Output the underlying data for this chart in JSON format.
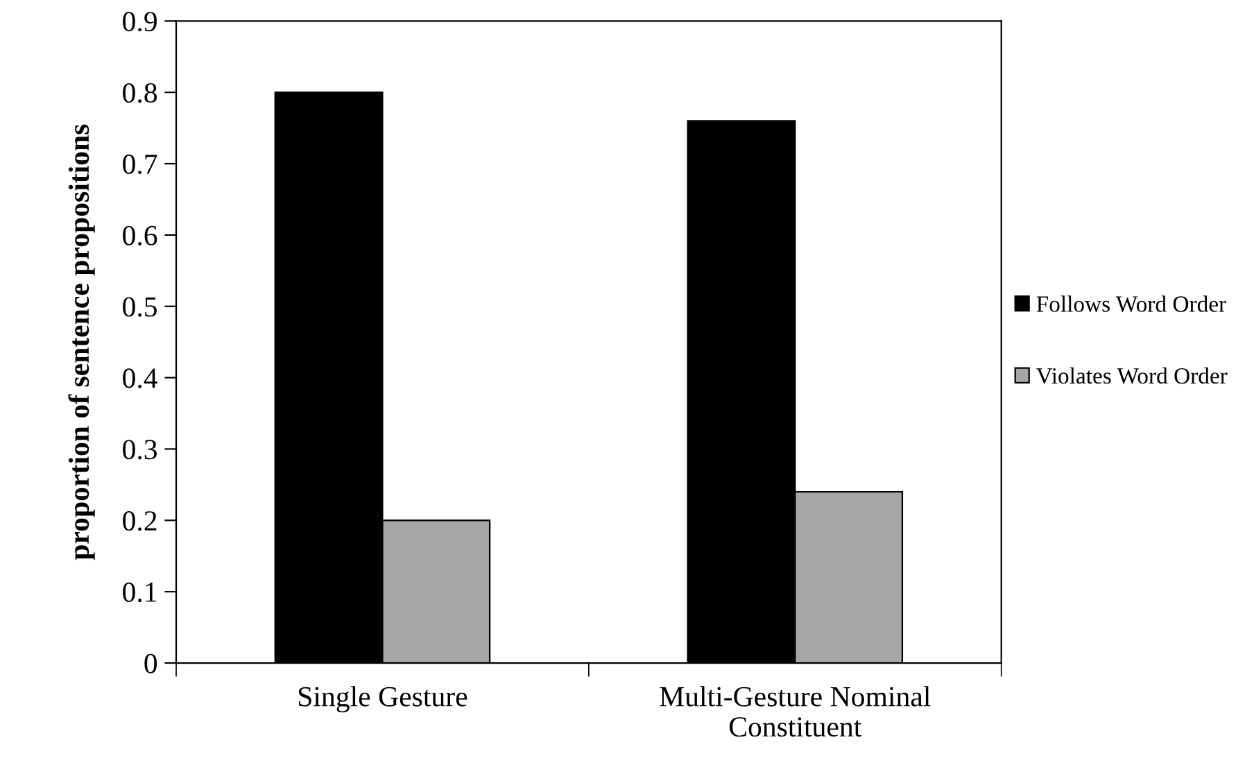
{
  "chart_data": {
    "type": "bar",
    "ylabel": "proportion of sentence propositions",
    "categories": [
      "Single Gesture",
      "Multi-Gesture Nominal\nConstituent"
    ],
    "series": [
      {
        "name": "Follows Word Order",
        "color": "#000000",
        "values": [
          0.8,
          0.76
        ]
      },
      {
        "name": "Violates Word Order",
        "color": "#a6a6a6",
        "values": [
          0.2,
          0.24
        ]
      }
    ],
    "ylim": [
      0,
      0.9
    ],
    "yticks": [
      {
        "value": 0,
        "label": "0"
      },
      0.1,
      0.2,
      0.3,
      0.4,
      0.5,
      0.6,
      0.7,
      0.8,
      0.9
    ],
    "grid": false,
    "legend": "right"
  }
}
